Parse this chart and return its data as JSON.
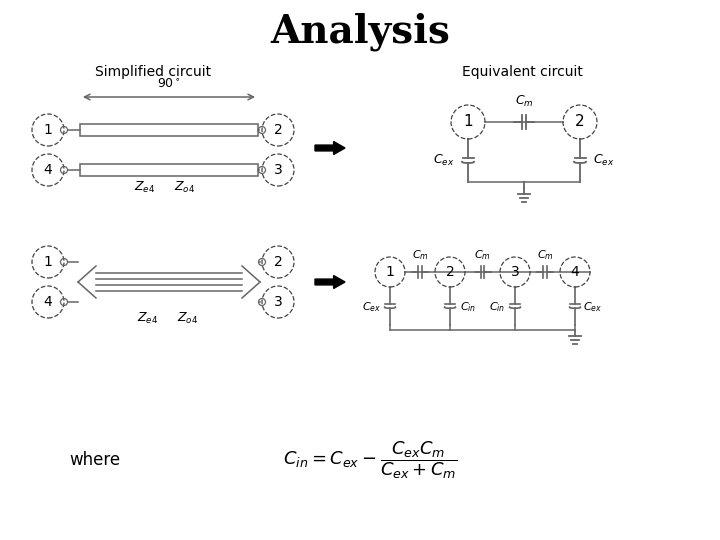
{
  "title": "Analysis",
  "title_fontsize": 28,
  "subtitle_left": "Simplified circuit",
  "subtitle_right": "Equivalent circuit",
  "bg_color": "#ffffff",
  "line_color": "#666666",
  "text_color": "#000000",
  "fig_width": 7.2,
  "fig_height": 5.4
}
